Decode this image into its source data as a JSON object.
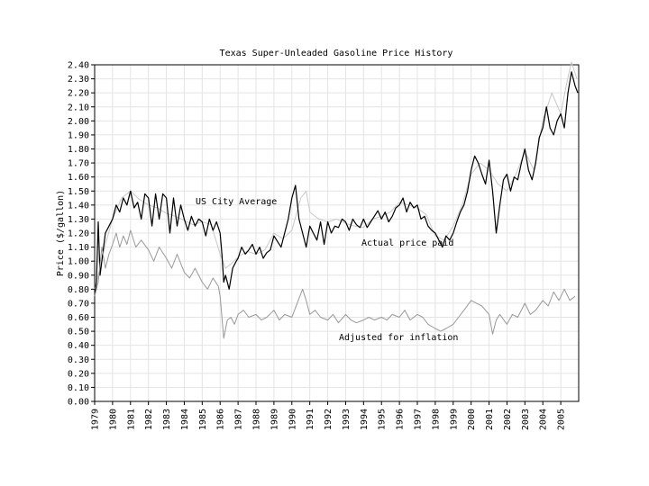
{
  "chart_data": {
    "type": "line",
    "title": "Texas Super-Unleaded Gasoline Price History",
    "xlabel": "",
    "ylabel": "Price ($/gallon)",
    "xlim": [
      1979.0,
      2006.0
    ],
    "ylim": [
      0.0,
      2.4
    ],
    "grid": true,
    "x_ticks": [
      "1979",
      "1980",
      "1981",
      "1982",
      "1983",
      "1984",
      "1985",
      "1986",
      "1987",
      "1988",
      "1989",
      "1990",
      "1991",
      "1992",
      "1993",
      "1994",
      "1995",
      "1996",
      "1997",
      "1998",
      "1999",
      "2000",
      "2001",
      "2002",
      "2003",
      "2004",
      "2005"
    ],
    "y_ticks": [
      "0.00",
      "0.10",
      "0.20",
      "0.30",
      "0.40",
      "0.50",
      "0.60",
      "0.70",
      "0.80",
      "0.90",
      "1.00",
      "1.10",
      "1.20",
      "1.30",
      "1.40",
      "1.50",
      "1.60",
      "1.70",
      "1.80",
      "1.90",
      "2.00",
      "2.10",
      "2.20",
      "2.30",
      "2.40"
    ],
    "annotations": [
      {
        "text": "US City Average",
        "series": "US City Average"
      },
      {
        "text": "Actual price paid",
        "series": "Actual price paid"
      },
      {
        "text": "Adjusted for inflation",
        "series": "Adjusted for inflation"
      }
    ],
    "series": [
      {
        "name": "US City Average",
        "color": "#c8c8c8",
        "x": [
          1979.0,
          1979.3,
          1979.6,
          1980.0,
          1980.5,
          1981.0,
          1981.5,
          1982.0,
          1982.5,
          1983.0,
          1983.5,
          1984.0,
          1984.5,
          1985.0,
          1985.5,
          1986.0,
          1986.3,
          1986.6,
          1987.0,
          1987.5,
          1988.0,
          1988.5,
          1989.0,
          1989.5,
          1990.0,
          1990.5,
          1990.8,
          1991.0,
          1991.5,
          1992.0,
          1992.5,
          1993.0,
          1993.5,
          1994.0,
          1994.5,
          1995.0,
          1995.5,
          1996.0,
          1996.5,
          1997.0,
          1997.5,
          1998.0,
          1998.5,
          1999.0,
          1999.5,
          2000.0,
          2000.5,
          2001.0,
          2001.5,
          2002.0,
          2002.5,
          2003.0,
          2003.5,
          2004.0,
          2004.5,
          2005.0,
          2005.3,
          2005.6,
          2005.9
        ],
        "y": [
          0.8,
          0.95,
          1.12,
          1.3,
          1.45,
          1.5,
          1.44,
          1.4,
          1.38,
          1.34,
          1.32,
          1.29,
          1.26,
          1.28,
          1.26,
          1.05,
          0.95,
          0.98,
          1.03,
          1.07,
          1.05,
          1.08,
          1.2,
          1.16,
          1.22,
          1.45,
          1.5,
          1.35,
          1.3,
          1.28,
          1.3,
          1.27,
          1.25,
          1.24,
          1.3,
          1.32,
          1.35,
          1.42,
          1.4,
          1.38,
          1.33,
          1.18,
          1.15,
          1.25,
          1.4,
          1.62,
          1.7,
          1.65,
          1.55,
          1.5,
          1.62,
          1.78,
          1.65,
          2.0,
          2.2,
          2.05,
          2.25,
          2.42,
          2.3
        ]
      },
      {
        "name": "Actual price paid",
        "color": "#000000",
        "x": [
          1979.0,
          1979.1,
          1979.2,
          1979.3,
          1979.4,
          1979.5,
          1979.6,
          1979.8,
          1980.0,
          1980.2,
          1980.4,
          1980.6,
          1980.8,
          1981.0,
          1981.2,
          1981.4,
          1981.6,
          1981.8,
          1982.0,
          1982.2,
          1982.4,
          1982.6,
          1982.8,
          1983.0,
          1983.2,
          1983.4,
          1983.6,
          1983.8,
          1984.0,
          1984.2,
          1984.4,
          1984.6,
          1984.8,
          1985.0,
          1985.2,
          1985.4,
          1985.6,
          1985.8,
          1986.0,
          1986.1,
          1986.2,
          1986.3,
          1986.5,
          1986.7,
          1986.9,
          1987.0,
          1987.2,
          1987.4,
          1987.6,
          1987.8,
          1988.0,
          1988.2,
          1988.4,
          1988.6,
          1988.8,
          1989.0,
          1989.2,
          1989.4,
          1989.6,
          1989.8,
          1990.0,
          1990.2,
          1990.4,
          1990.6,
          1990.8,
          1991.0,
          1991.2,
          1991.4,
          1991.6,
          1991.8,
          1992.0,
          1992.2,
          1992.4,
          1992.6,
          1992.8,
          1993.0,
          1993.2,
          1993.4,
          1993.6,
          1993.8,
          1994.0,
          1994.2,
          1994.4,
          1994.6,
          1994.8,
          1995.0,
          1995.2,
          1995.4,
          1995.6,
          1995.8,
          1996.0,
          1996.2,
          1996.4,
          1996.6,
          1996.8,
          1997.0,
          1997.2,
          1997.4,
          1997.6,
          1997.8,
          1998.0,
          1998.2,
          1998.4,
          1998.6,
          1998.8,
          1999.0,
          1999.2,
          1999.4,
          1999.6,
          1999.8,
          2000.0,
          2000.2,
          2000.4,
          2000.6,
          2000.8,
          2001.0,
          2001.2,
          2001.4,
          2001.6,
          2001.8,
          2002.0,
          2002.2,
          2002.4,
          2002.6,
          2002.8,
          2003.0,
          2003.2,
          2003.4,
          2003.6,
          2003.8,
          2004.0,
          2004.2,
          2004.4,
          2004.6,
          2004.8,
          2005.0,
          2005.2,
          2005.4,
          2005.6,
          2005.8,
          2005.95
        ],
        "y": [
          0.75,
          0.85,
          1.28,
          0.9,
          1.0,
          1.1,
          1.2,
          1.25,
          1.3,
          1.4,
          1.35,
          1.45,
          1.4,
          1.5,
          1.38,
          1.42,
          1.3,
          1.48,
          1.45,
          1.25,
          1.48,
          1.3,
          1.48,
          1.45,
          1.2,
          1.45,
          1.25,
          1.4,
          1.3,
          1.22,
          1.32,
          1.25,
          1.3,
          1.28,
          1.18,
          1.3,
          1.22,
          1.28,
          1.2,
          1.05,
          0.85,
          0.9,
          0.8,
          0.95,
          1.0,
          1.02,
          1.1,
          1.05,
          1.08,
          1.12,
          1.05,
          1.1,
          1.02,
          1.06,
          1.08,
          1.18,
          1.14,
          1.1,
          1.2,
          1.3,
          1.45,
          1.54,
          1.3,
          1.2,
          1.1,
          1.25,
          1.2,
          1.15,
          1.28,
          1.12,
          1.28,
          1.2,
          1.25,
          1.24,
          1.3,
          1.28,
          1.22,
          1.3,
          1.26,
          1.24,
          1.3,
          1.24,
          1.28,
          1.32,
          1.36,
          1.3,
          1.35,
          1.28,
          1.32,
          1.38,
          1.4,
          1.45,
          1.35,
          1.42,
          1.38,
          1.4,
          1.3,
          1.32,
          1.25,
          1.22,
          1.2,
          1.15,
          1.1,
          1.18,
          1.15,
          1.2,
          1.28,
          1.35,
          1.4,
          1.5,
          1.65,
          1.75,
          1.7,
          1.62,
          1.55,
          1.72,
          1.5,
          1.2,
          1.4,
          1.58,
          1.62,
          1.5,
          1.6,
          1.58,
          1.7,
          1.8,
          1.65,
          1.58,
          1.7,
          1.88,
          1.95,
          2.1,
          1.95,
          1.9,
          2.0,
          2.05,
          1.95,
          2.2,
          2.35,
          2.25,
          2.2
        ]
      },
      {
        "name": "Adjusted for inflation",
        "color": "#999999",
        "x": [
          1979.0,
          1979.2,
          1979.4,
          1979.6,
          1979.8,
          1980.0,
          1980.2,
          1980.4,
          1980.6,
          1980.8,
          1981.0,
          1981.3,
          1981.6,
          1982.0,
          1982.3,
          1982.6,
          1983.0,
          1983.3,
          1983.6,
          1984.0,
          1984.3,
          1984.6,
          1985.0,
          1985.3,
          1985.6,
          1985.9,
          1986.0,
          1986.2,
          1986.4,
          1986.6,
          1986.8,
          1987.0,
          1987.3,
          1987.6,
          1988.0,
          1988.3,
          1988.6,
          1989.0,
          1989.3,
          1989.6,
          1990.0,
          1990.3,
          1990.6,
          1990.8,
          1991.0,
          1991.3,
          1991.6,
          1992.0,
          1992.3,
          1992.6,
          1993.0,
          1993.3,
          1993.6,
          1994.0,
          1994.3,
          1994.6,
          1995.0,
          1995.3,
          1995.6,
          1996.0,
          1996.3,
          1996.6,
          1997.0,
          1997.3,
          1997.6,
          1998.0,
          1998.3,
          1998.6,
          1999.0,
          1999.3,
          1999.6,
          2000.0,
          2000.3,
          2000.6,
          2001.0,
          2001.2,
          2001.4,
          2001.6,
          2002.0,
          2002.3,
          2002.6,
          2003.0,
          2003.3,
          2003.6,
          2004.0,
          2004.3,
          2004.6,
          2004.9,
          2005.2,
          2005.5,
          2005.8
        ],
        "y": [
          0.75,
          0.85,
          1.1,
          0.95,
          1.05,
          1.12,
          1.2,
          1.1,
          1.18,
          1.12,
          1.22,
          1.1,
          1.15,
          1.08,
          1.0,
          1.1,
          1.02,
          0.95,
          1.05,
          0.92,
          0.88,
          0.95,
          0.85,
          0.8,
          0.88,
          0.82,
          0.75,
          0.45,
          0.58,
          0.6,
          0.55,
          0.62,
          0.65,
          0.6,
          0.62,
          0.58,
          0.6,
          0.65,
          0.58,
          0.62,
          0.6,
          0.7,
          0.8,
          0.72,
          0.62,
          0.65,
          0.6,
          0.58,
          0.62,
          0.56,
          0.62,
          0.58,
          0.56,
          0.58,
          0.6,
          0.58,
          0.6,
          0.58,
          0.62,
          0.6,
          0.65,
          0.58,
          0.62,
          0.6,
          0.55,
          0.52,
          0.5,
          0.52,
          0.55,
          0.6,
          0.65,
          0.72,
          0.7,
          0.68,
          0.62,
          0.48,
          0.58,
          0.62,
          0.55,
          0.62,
          0.6,
          0.7,
          0.62,
          0.65,
          0.72,
          0.68,
          0.78,
          0.72,
          0.8,
          0.72,
          0.75
        ]
      }
    ]
  }
}
